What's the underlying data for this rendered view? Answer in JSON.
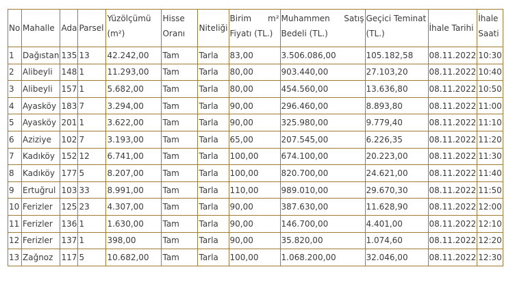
{
  "headers": {
    "no": "No",
    "mahalle": "Mahalle",
    "ada": "Ada",
    "parsel": "Parsel",
    "yuzolcumu": [
      "Yüzölçümü",
      "(m²)"
    ],
    "hisse": [
      "Hisse",
      "Oranı"
    ],
    "niteligi": "Niteliği",
    "birim": [
      "Birim",
      "m²",
      "Fiyatı (TL.)"
    ],
    "muhammen": [
      "Muhammen",
      "Satış",
      "Bedeli (TL.)"
    ],
    "teminat": [
      "Geçici Teminat",
      "(TL.)"
    ],
    "tarih": "İhale Tarihi",
    "saat": [
      "İhale",
      "Saati"
    ]
  },
  "rows": [
    {
      "no": "1",
      "mahalle": "Dağıstan",
      "ada": "135",
      "parsel": "13",
      "yuz": "42.242,00",
      "hisse": "Tam",
      "nit": "Tarla",
      "birim": "83,00",
      "muh": "3.506.086,00",
      "tem": "105.182,58",
      "tarih": "08.11.2022",
      "saat": "10:30"
    },
    {
      "no": "2",
      "mahalle": "Alibeyli",
      "ada": "148",
      "parsel": "1",
      "yuz": "11.293,00",
      "hisse": "Tam",
      "nit": "Tarla",
      "birim": "80,00",
      "muh": "903.440,00",
      "tem": "27.103,20",
      "tarih": "08.11.2022",
      "saat": "10:40"
    },
    {
      "no": "3",
      "mahalle": "Alibeyli",
      "ada": "157",
      "parsel": "1",
      "yuz": "5.682,00",
      "hisse": "Tam",
      "nit": "Tarla",
      "birim": "80,00",
      "muh": "454.560,00",
      "tem": "13.636,80",
      "tarih": "08.11.2022",
      "saat": "10:50"
    },
    {
      "no": "4",
      "mahalle": "Ayasköy",
      "ada": "183",
      "parsel": "7",
      "yuz": "3.294,00",
      "hisse": "Tam",
      "nit": "Tarla",
      "birim": "90,00",
      "muh": "296.460,00",
      "tem": "8.893,80",
      "tarih": "08.11.2022",
      "saat": "11:00"
    },
    {
      "no": "5",
      "mahalle": "Ayasköy",
      "ada": "201",
      "parsel": "1",
      "yuz": "3.622,00",
      "hisse": "Tam",
      "nit": "Tarla",
      "birim": "90,00",
      "muh": "325.980,00",
      "tem": "9.779,40",
      "tarih": "08.11.2022",
      "saat": "11:10"
    },
    {
      "no": "6",
      "mahalle": "Aziziye",
      "ada": "102",
      "parsel": "7",
      "yuz": "3.193,00",
      "hisse": "Tam",
      "nit": "Tarla",
      "birim": "65,00",
      "muh": "207.545,00",
      "tem": "6.226,35",
      "tarih": "08.11.2022",
      "saat": "11:20"
    },
    {
      "no": "7",
      "mahalle": "Kadıköy",
      "ada": "152",
      "parsel": "12",
      "yuz": "6.741,00",
      "hisse": "Tam",
      "nit": "Tarla",
      "birim": "100,00",
      "muh": "674.100,00",
      "tem": "20.223,00",
      "tarih": "08.11.2022",
      "saat": "11:30"
    },
    {
      "no": "8",
      "mahalle": "Kadıköy",
      "ada": "177",
      "parsel": "5",
      "yuz": "8.207,00",
      "hisse": "Tam",
      "nit": "Tarla",
      "birim": "100,00",
      "muh": "820.700,00",
      "tem": "24.621,00",
      "tarih": "08.11.2022",
      "saat": "11:40"
    },
    {
      "no": "9",
      "mahalle": "Ertuğrul",
      "ada": "103",
      "parsel": "33",
      "yuz": "8.991,00",
      "hisse": "Tam",
      "nit": "Tarla",
      "birim": "110,00",
      "muh": "989.010,00",
      "tem": "29.670,30",
      "tarih": "08.11.2022",
      "saat": "11:50"
    },
    {
      "no": "10",
      "mahalle": "Ferizler",
      "ada": "125",
      "parsel": "23",
      "yuz": "4.307,00",
      "hisse": "Tam",
      "nit": "Tarla",
      "birim": "90,00",
      "muh": "387.630,00",
      "tem": "11.628,90",
      "tarih": "08.11.2022",
      "saat": "12:00"
    },
    {
      "no": "11",
      "mahalle": "Ferizler",
      "ada": "136",
      "parsel": "1",
      "yuz": "1.630,00",
      "hisse": "Tam",
      "nit": "Tarla",
      "birim": "90,00",
      "muh": "146.700,00",
      "tem": "4.401,00",
      "tarih": "08.11.2022",
      "saat": "12:10"
    },
    {
      "no": "12",
      "mahalle": "Ferizler",
      "ada": "137",
      "parsel": "1",
      "yuz": "398,00",
      "hisse": "Tam",
      "nit": "Tarla",
      "birim": "90,00",
      "muh": "35.820,00",
      "tem": "1.074,60",
      "tarih": "08.11.2022",
      "saat": "12:20"
    },
    {
      "no": "13",
      "mahalle": "Zağnoz",
      "ada": "117",
      "parsel": "5",
      "yuz": "10.682,00",
      "hisse": "Tam",
      "nit": "Tarla",
      "birim": "100,00",
      "muh": "1.068.200,00",
      "tem": "32.046,00",
      "tarih": "08.11.2022",
      "saat": "12:30"
    }
  ]
}
